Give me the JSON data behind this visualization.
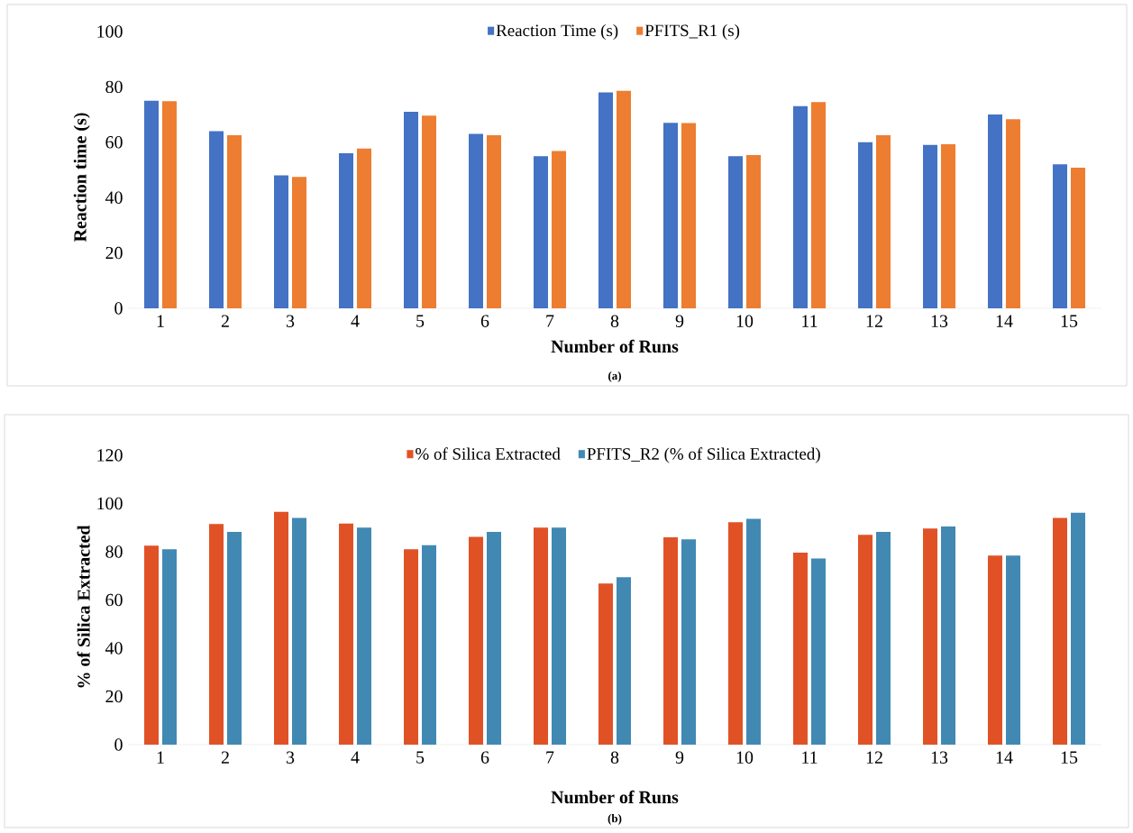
{
  "chart_data": [
    {
      "type": "bar",
      "xlabel": "Number of Runs",
      "ylabel": "Reaction time (s)",
      "categories": [
        "1",
        "2",
        "3",
        "4",
        "5",
        "6",
        "7",
        "8",
        "9",
        "10",
        "11",
        "12",
        "13",
        "14",
        "15"
      ],
      "series": [
        {
          "name": "Reaction Time (s)",
          "color": "#4472c4",
          "values": [
            75,
            64,
            48,
            56,
            71,
            63,
            55,
            78,
            67,
            55,
            73,
            60,
            59,
            70,
            52
          ]
        },
        {
          "name": "PFITS_R1 (s)",
          "color": "#ed7d31",
          "values": [
            74.8,
            62.5,
            47.5,
            57.7,
            69.6,
            62.5,
            56.8,
            78.6,
            66.9,
            55.4,
            74.5,
            62.5,
            59.3,
            68.3,
            50.8
          ]
        }
      ],
      "ylim": [
        0,
        100
      ],
      "yticks": [
        0,
        20,
        40,
        60,
        80,
        100
      ],
      "grid": false,
      "legend": "top",
      "annotations": [
        "(a)"
      ]
    },
    {
      "type": "bar",
      "xlabel": "Number of Runs",
      "ylabel": "% of Silica Extracted",
      "categories": [
        "1",
        "2",
        "3",
        "4",
        "5",
        "6",
        "7",
        "8",
        "9",
        "10",
        "11",
        "12",
        "13",
        "14",
        "15"
      ],
      "series": [
        {
          "name": "% of Silica Extracted",
          "color": "#e05226",
          "values": [
            82.5,
            91.5,
            96.5,
            91.7,
            81,
            86.2,
            90,
            66.8,
            86,
            92.2,
            79.6,
            87,
            89.6,
            78.4,
            94
          ]
        },
        {
          "name": "PFITS_R2 (% of Silica Extracted)",
          "color": "#4189b3",
          "values": [
            81,
            88.2,
            94,
            90,
            82.7,
            88.2,
            90,
            69.4,
            85.1,
            93.6,
            77.2,
            88.2,
            90.5,
            78.4,
            96.2
          ]
        }
      ],
      "ylim": [
        0,
        120
      ],
      "yticks": [
        0,
        20,
        40,
        60,
        80,
        100,
        120
      ],
      "grid": false,
      "legend": "top",
      "annotations": [
        "(b)"
      ]
    }
  ]
}
